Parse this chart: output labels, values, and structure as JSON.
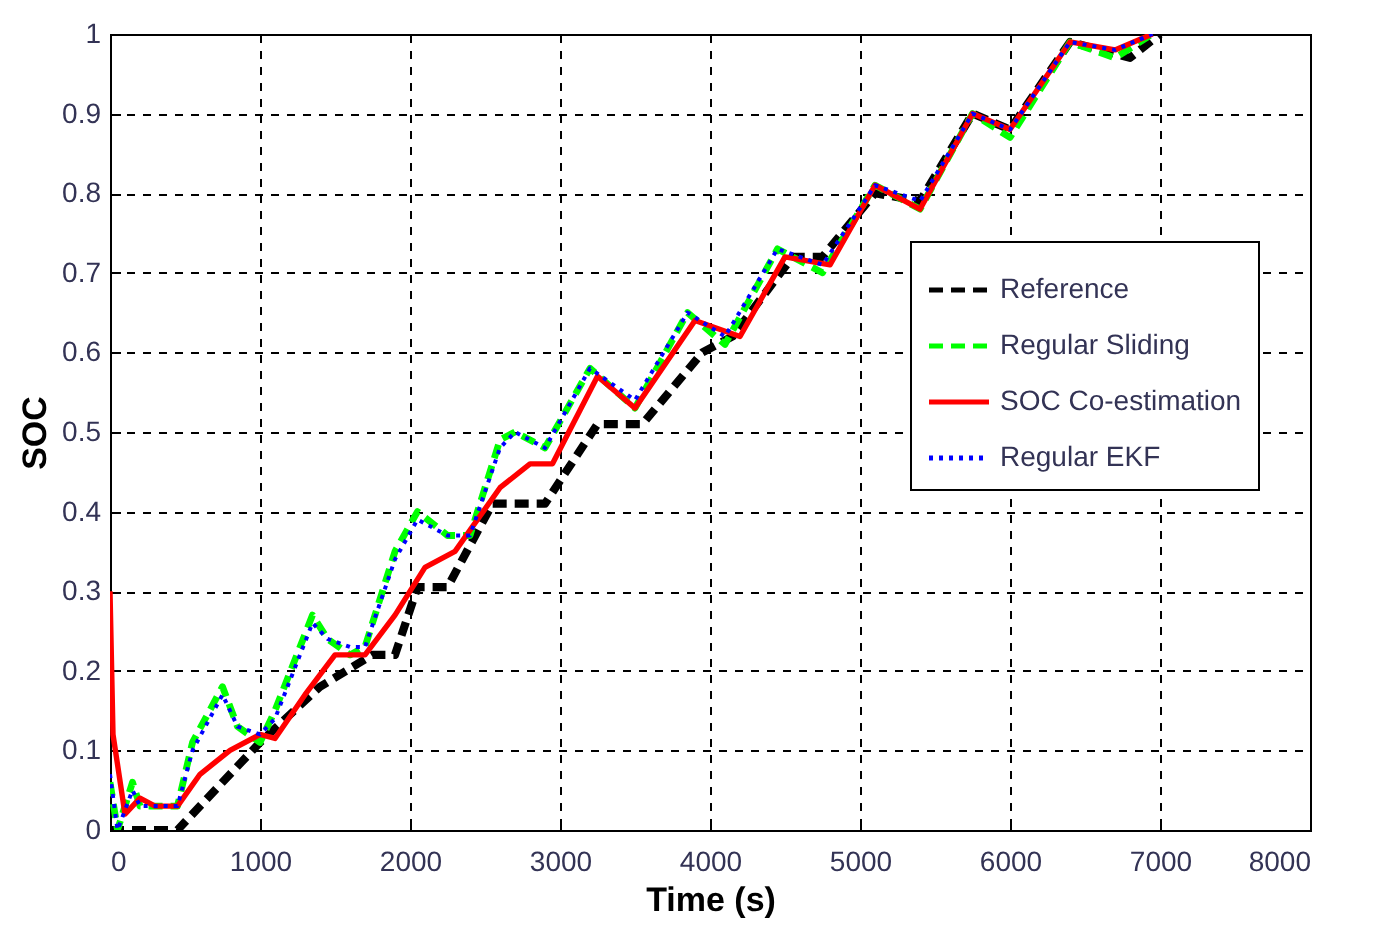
{
  "chart_data": {
    "type": "line",
    "xlabel": "Time (s)",
    "ylabel": "SOC",
    "xlim": [
      0,
      8000
    ],
    "ylim": [
      0,
      1
    ],
    "xticks": [
      0,
      1000,
      2000,
      3000,
      4000,
      5000,
      6000,
      7000,
      8000
    ],
    "yticks": [
      0,
      0.1,
      0.2,
      0.3,
      0.4,
      0.5,
      0.6,
      0.7,
      0.8,
      0.9,
      1
    ],
    "grid": true,
    "legend": "right",
    "series": [
      {
        "name": "Reference",
        "color": "#000000",
        "line_style": "dashed",
        "x": [
          0,
          450,
          1000,
          1400,
          1750,
          1900,
          2050,
          2250,
          2550,
          2900,
          3250,
          3550,
          3950,
          4150,
          4550,
          4750,
          5100,
          5400,
          5750,
          6000,
          6400,
          6800,
          7000
        ],
        "values": [
          0,
          0,
          0.11,
          0.18,
          0.22,
          0.22,
          0.305,
          0.305,
          0.41,
          0.41,
          0.51,
          0.51,
          0.6,
          0.62,
          0.72,
          0.72,
          0.8,
          0.79,
          0.9,
          0.88,
          0.99,
          0.97,
          1
        ]
      },
      {
        "name": "Regular Sliding",
        "color": "#00ff00",
        "line_style": "dashed",
        "x": [
          0,
          50,
          150,
          200,
          450,
          550,
          750,
          850,
          1000,
          1100,
          1350,
          1450,
          1600,
          1700,
          1900,
          2050,
          2250,
          2400,
          2600,
          2700,
          2900,
          3200,
          3500,
          3850,
          4100,
          4450,
          4750,
          5100,
          5400,
          5750,
          6000,
          6400,
          6700,
          6950
        ],
        "values": [
          0.06,
          0,
          0.06,
          0.03,
          0.03,
          0.11,
          0.18,
          0.13,
          0.11,
          0.15,
          0.27,
          0.24,
          0.22,
          0.23,
          0.35,
          0.4,
          0.37,
          0.37,
          0.49,
          0.5,
          0.48,
          0.58,
          0.53,
          0.65,
          0.61,
          0.73,
          0.7,
          0.81,
          0.78,
          0.9,
          0.87,
          0.99,
          0.97,
          1
        ]
      },
      {
        "name": "SOC Co-estimation",
        "color": "#ff0000",
        "line_style": "solid",
        "x": [
          0,
          20,
          100,
          200,
          300,
          450,
          600,
          800,
          1000,
          1100,
          1300,
          1500,
          1700,
          1900,
          2100,
          2300,
          2600,
          2800,
          2950,
          3250,
          3500,
          3900,
          4200,
          4500,
          4800,
          5100,
          5400,
          5750,
          6000,
          6400,
          6700,
          6950
        ],
        "values": [
          0.3,
          0.12,
          0.02,
          0.04,
          0.03,
          0.03,
          0.07,
          0.1,
          0.12,
          0.115,
          0.17,
          0.22,
          0.22,
          0.27,
          0.33,
          0.35,
          0.43,
          0.46,
          0.46,
          0.57,
          0.53,
          0.64,
          0.62,
          0.72,
          0.71,
          0.81,
          0.78,
          0.9,
          0.88,
          0.99,
          0.98,
          1
        ]
      },
      {
        "name": "Regular EKF",
        "color": "#0000ff",
        "line_style": "dotted",
        "x": [
          0,
          50,
          150,
          200,
          450,
          550,
          750,
          850,
          1000,
          1100,
          1350,
          1450,
          1600,
          1700,
          1900,
          2050,
          2250,
          2400,
          2600,
          2700,
          2900,
          3200,
          3500,
          3850,
          4100,
          4450,
          4750,
          5100,
          5400,
          5750,
          6000,
          6400,
          6700,
          6950
        ],
        "values": [
          0.07,
          0,
          0.05,
          0.03,
          0.03,
          0.1,
          0.17,
          0.13,
          0.12,
          0.14,
          0.26,
          0.24,
          0.23,
          0.23,
          0.34,
          0.39,
          0.37,
          0.37,
          0.48,
          0.5,
          0.48,
          0.58,
          0.54,
          0.65,
          0.62,
          0.73,
          0.71,
          0.81,
          0.79,
          0.9,
          0.88,
          0.99,
          0.98,
          1
        ]
      }
    ]
  }
}
